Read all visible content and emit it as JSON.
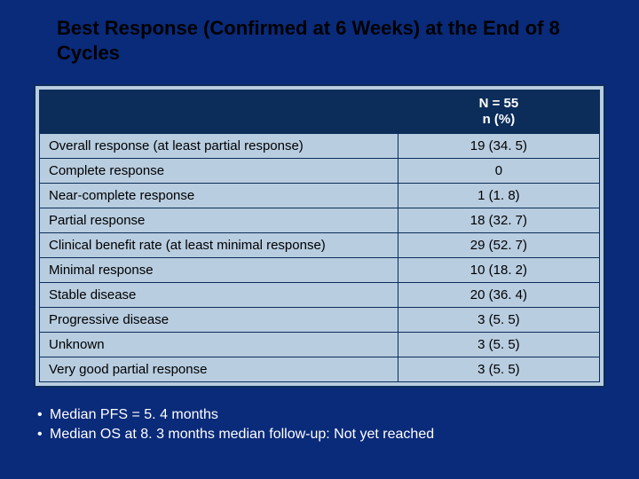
{
  "colors": {
    "slide_background": "#0a2a7a",
    "title_text": "#000000",
    "table_outer_border": "#0c2d5a",
    "table_header_bg": "#0c2d5a",
    "table_header_text": "#ffffff",
    "table_body_bg": "#b8cde0",
    "table_body_text": "#000000",
    "table_cell_border": "#0c2d5a",
    "bullet_text": "#ffffff"
  },
  "typography": {
    "title_fontsize_pt": 17,
    "table_fontsize_pt": 11,
    "bullet_fontsize_pt": 12,
    "font_family": "Arial"
  },
  "title": "Best Response (Confirmed at 6 Weeks) at the End of 8 Cycles",
  "table": {
    "type": "table",
    "col_widths_pct": [
      64,
      36
    ],
    "header": {
      "blank": "",
      "stat_line1": "N = 55",
      "stat_line2": "n (%)"
    },
    "rows": [
      {
        "label": "Overall response (at least partial response)",
        "value": "19 (34. 5)"
      },
      {
        "label": "Complete response",
        "value": "0"
      },
      {
        "label": "Near-complete response",
        "value": "1 (1. 8)"
      },
      {
        "label": "Partial response",
        "value": "18 (32. 7)"
      },
      {
        "label": "Clinical benefit rate (at least minimal response)",
        "value": "29 (52. 7)"
      },
      {
        "label": "Minimal response",
        "value": "10 (18. 2)"
      },
      {
        "label": "Stable disease",
        "value": "20 (36. 4)"
      },
      {
        "label": "Progressive disease",
        "value": "3 (5. 5)"
      },
      {
        "label": "Unknown",
        "value": "3 (5. 5)"
      },
      {
        "label": "Very good partial response",
        "value": "3 (5. 5)"
      }
    ]
  },
  "bullets": [
    "Median PFS = 5. 4 months",
    "Median OS at 8. 3 months median follow-up: Not yet reached"
  ]
}
